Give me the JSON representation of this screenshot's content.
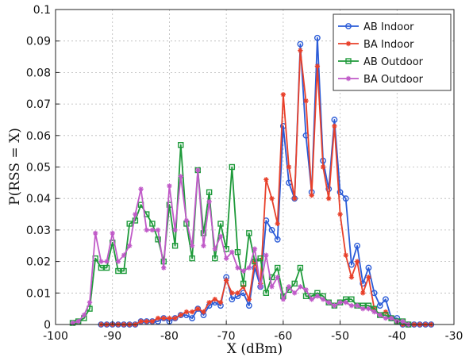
{
  "chart_data": {
    "type": "line",
    "title": "",
    "xlabel": "X (dBm)",
    "ylabel": "P(RSS = X)",
    "xlim": [
      -100,
      -30
    ],
    "ylim": [
      0,
      0.1
    ],
    "xticks": [
      -100,
      -90,
      -80,
      -70,
      -60,
      -50,
      -40,
      -30
    ],
    "yticks": [
      0,
      0.01,
      0.02,
      0.03,
      0.04,
      0.05,
      0.06,
      0.07,
      0.08,
      0.09,
      0.1
    ],
    "grid": true,
    "legend_position": "top-right",
    "series": [
      {
        "name": "AB Indoor",
        "color": "#2a5bd7",
        "marker": "circle",
        "x": [
          -92,
          -91,
          -90,
          -89,
          -88,
          -87,
          -86,
          -85,
          -84,
          -83,
          -82,
          -81,
          -80,
          -79,
          -78,
          -77,
          -76,
          -75,
          -74,
          -73,
          -72,
          -71,
          -70,
          -69,
          -68,
          -67,
          -66,
          -65,
          -64,
          -63,
          -62,
          -61,
          -60,
          -59,
          -58,
          -57,
          -56,
          -55,
          -54,
          -53,
          -52,
          -51,
          -50,
          -49,
          -48,
          -47,
          -46,
          -45,
          -44,
          -43,
          -42,
          -41,
          -40,
          -39,
          -38,
          -37,
          -36,
          -35,
          -34
        ],
        "y": [
          0,
          0,
          0,
          0,
          0,
          0,
          0,
          0.001,
          0.001,
          0.001,
          0.001,
          0.002,
          0.001,
          0.002,
          0.003,
          0.003,
          0.002,
          0.005,
          0.003,
          0.006,
          0.007,
          0.006,
          0.015,
          0.008,
          0.009,
          0.01,
          0.006,
          0.018,
          0.012,
          0.033,
          0.03,
          0.027,
          0.063,
          0.045,
          0.04,
          0.089,
          0.06,
          0.042,
          0.091,
          0.052,
          0.043,
          0.065,
          0.042,
          0.04,
          0.019,
          0.025,
          0.013,
          0.018,
          0.01,
          0.006,
          0.008,
          0.002,
          0.002,
          0,
          0,
          0,
          0,
          0,
          0
        ]
      },
      {
        "name": "BA Indoor",
        "color": "#e8402a",
        "marker": "star",
        "x": [
          -92,
          -91,
          -90,
          -89,
          -88,
          -87,
          -86,
          -85,
          -84,
          -83,
          -82,
          -81,
          -80,
          -79,
          -78,
          -77,
          -76,
          -75,
          -74,
          -73,
          -72,
          -71,
          -70,
          -69,
          -68,
          -67,
          -66,
          -65,
          -64,
          -63,
          -62,
          -61,
          -60,
          -59,
          -58,
          -57,
          -56,
          -55,
          -54,
          -53,
          -52,
          -51,
          -50,
          -49,
          -48,
          -47,
          -46,
          -45,
          -44,
          -43,
          -42,
          -41,
          -40,
          -39,
          -38,
          -37,
          -36,
          -35,
          -34
        ],
        "y": [
          0,
          0,
          0,
          0,
          0,
          0,
          0,
          0.001,
          0.001,
          0.001,
          0.002,
          0.002,
          0.002,
          0.002,
          0.003,
          0.004,
          0.004,
          0.005,
          0.004,
          0.007,
          0.008,
          0.007,
          0.014,
          0.01,
          0.01,
          0.012,
          0.008,
          0.02,
          0.013,
          0.046,
          0.04,
          0.032,
          0.073,
          0.05,
          0.04,
          0.087,
          0.071,
          0.041,
          0.082,
          0.05,
          0.04,
          0.063,
          0.035,
          0.022,
          0.015,
          0.02,
          0.01,
          0.015,
          0.005,
          0.003,
          0.004,
          0.002,
          0.001,
          0,
          0,
          0,
          0,
          0,
          0
        ]
      },
      {
        "name": "AB Outdoor",
        "color": "#1e9a3a",
        "marker": "square",
        "x": [
          -97,
          -96,
          -95,
          -94,
          -93,
          -92,
          -91,
          -90,
          -89,
          -88,
          -87,
          -86,
          -85,
          -84,
          -83,
          -82,
          -81,
          -80,
          -79,
          -78,
          -77,
          -76,
          -75,
          -74,
          -73,
          -72,
          -71,
          -70,
          -69,
          -68,
          -67,
          -66,
          -65,
          -64,
          -63,
          -62,
          -61,
          -60,
          -59,
          -58,
          -57,
          -56,
          -55,
          -54,
          -53,
          -52,
          -51,
          -50,
          -49,
          -48,
          -47,
          -46,
          -45,
          -44,
          -43,
          -42,
          -41,
          -40,
          -39,
          -38
        ],
        "y": [
          0.0005,
          0.001,
          0.002,
          0.005,
          0.021,
          0.018,
          0.018,
          0.026,
          0.017,
          0.017,
          0.032,
          0.033,
          0.038,
          0.035,
          0.032,
          0.027,
          0.02,
          0.038,
          0.025,
          0.057,
          0.032,
          0.021,
          0.049,
          0.029,
          0.042,
          0.021,
          0.032,
          0.024,
          0.05,
          0.023,
          0.013,
          0.029,
          0.02,
          0.021,
          0.01,
          0.015,
          0.018,
          0.009,
          0.011,
          0.013,
          0.018,
          0.009,
          0.009,
          0.01,
          0.009,
          0.007,
          0.006,
          0.007,
          0.008,
          0.008,
          0.006,
          0.006,
          0.006,
          0.005,
          0.003,
          0.003,
          0.002,
          0.001,
          0.001,
          0
        ]
      },
      {
        "name": "BA Outdoor",
        "color": "#c05ac8",
        "marker": "star",
        "x": [
          -97,
          -96,
          -95,
          -94,
          -93,
          -92,
          -91,
          -90,
          -89,
          -88,
          -87,
          -86,
          -85,
          -84,
          -83,
          -82,
          -81,
          -80,
          -79,
          -78,
          -77,
          -76,
          -75,
          -74,
          -73,
          -72,
          -71,
          -70,
          -69,
          -68,
          -67,
          -66,
          -65,
          -64,
          -63,
          -62,
          -61,
          -60,
          -59,
          -58,
          -57,
          -56,
          -55,
          -54,
          -53,
          -52,
          -51,
          -50,
          -49,
          -48,
          -47,
          -46,
          -45,
          -44,
          -43,
          -42,
          -41,
          -40,
          -39,
          -38
        ],
        "y": [
          0.0005,
          0.001,
          0.003,
          0.007,
          0.029,
          0.02,
          0.02,
          0.029,
          0.02,
          0.022,
          0.025,
          0.035,
          0.043,
          0.03,
          0.03,
          0.03,
          0.018,
          0.044,
          0.03,
          0.047,
          0.033,
          0.025,
          0.049,
          0.025,
          0.039,
          0.024,
          0.028,
          0.021,
          0.023,
          0.018,
          0.017,
          0.018,
          0.024,
          0.012,
          0.022,
          0.012,
          0.015,
          0.008,
          0.012,
          0.01,
          0.012,
          0.011,
          0.008,
          0.009,
          0.008,
          0.007,
          0.006,
          0.007,
          0.007,
          0.006,
          0.006,
          0.005,
          0.005,
          0.004,
          0.003,
          0.002,
          0.002,
          0.001,
          0.001,
          0
        ]
      }
    ]
  }
}
